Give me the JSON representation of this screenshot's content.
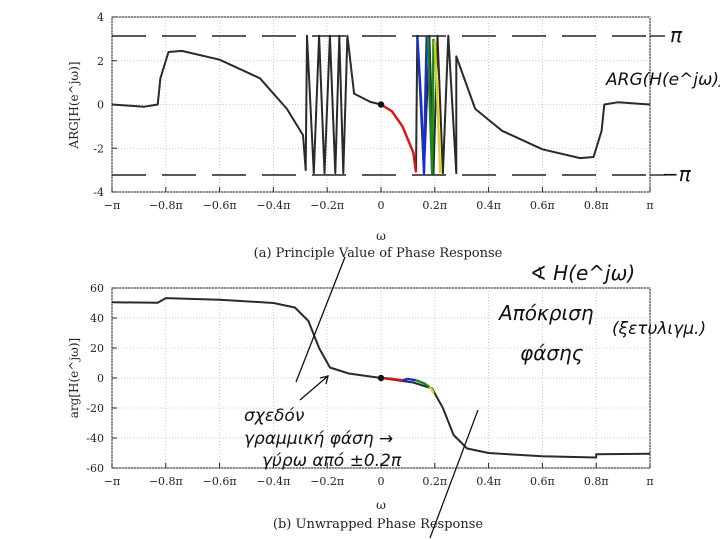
{
  "chart_data": [
    {
      "type": "line",
      "caption": "(a) Principle Value of Phase Response",
      "xlabel": "ω",
      "ylabel": "ARG[H(e^jω)]",
      "xlim_pi": [
        -1,
        1
      ],
      "ylim": [
        -4,
        4
      ],
      "xtick_labels": [
        "−π",
        "−0.8π",
        "−0.6π",
        "−0.4π",
        "−0.2π",
        "0",
        "0.2π",
        "0.4π",
        "0.6π",
        "0.8π",
        "π"
      ],
      "xtick_values_pi": [
        -1,
        -0.8,
        -0.6,
        -0.4,
        -0.2,
        0,
        0.2,
        0.4,
        0.6,
        0.8,
        1
      ],
      "ytick_values": [
        4,
        2,
        0,
        -2,
        -4
      ],
      "grid": true,
      "series": [
        {
          "color": "#2a2a2a",
          "points": [
            [
              -1,
              0
            ],
            [
              -0.88,
              -0.1
            ],
            [
              -0.83,
              0
            ],
            [
              -0.82,
              1.2
            ],
            [
              -0.79,
              2.4
            ],
            [
              -0.74,
              2.45
            ],
            [
              -0.6,
              2.05
            ],
            [
              -0.45,
              1.2
            ],
            [
              -0.35,
              -0.2
            ],
            [
              -0.29,
              -1.4
            ],
            [
              -0.28,
              -3.0
            ],
            [
              -0.275,
              3.14
            ],
            [
              -0.25,
              -3.14
            ],
            [
              -0.23,
              3.14
            ],
            [
              -0.21,
              -3.14
            ],
            [
              -0.19,
              3.14
            ],
            [
              -0.17,
              -3.14
            ],
            [
              -0.155,
              3.14
            ],
            [
              -0.14,
              -3.14
            ],
            [
              -0.125,
              3.14
            ],
            [
              -0.1,
              0.5
            ],
            [
              -0.04,
              0.12
            ],
            [
              0,
              0
            ]
          ]
        },
        {
          "color": "#2a2a2a",
          "points": [
            [
              0.13,
              -3.1
            ],
            [
              0.135,
              3.14
            ],
            [
              0.16,
              -3.14
            ],
            [
              0.18,
              3.14
            ],
            [
              0.195,
              -3.14
            ],
            [
              0.21,
              3.14
            ],
            [
              0.23,
              -3.14
            ],
            [
              0.25,
              3.14
            ],
            [
              0.28,
              -3.14
            ],
            [
              0.28,
              2.2
            ],
            [
              0.35,
              -0.2
            ],
            [
              0.45,
              -1.2
            ],
            [
              0.6,
              -2.05
            ],
            [
              0.74,
              -2.45
            ],
            [
              0.79,
              -2.4
            ],
            [
              0.82,
              -1.2
            ],
            [
              0.83,
              0
            ],
            [
              0.88,
              0.1
            ],
            [
              1,
              0
            ]
          ]
        },
        {
          "color": "#e01010",
          "points": [
            [
              0,
              0
            ],
            [
              0.04,
              -0.3
            ],
            [
              0.08,
              -1.0
            ],
            [
              0.12,
              -2.2
            ],
            [
              0.13,
              -3.1
            ]
          ]
        },
        {
          "color": "#1a2fd0",
          "points": [
            [
              0.135,
              3.14
            ],
            [
              0.15,
              0
            ],
            [
              0.16,
              -3.14
            ],
            [
              0.165,
              0.5
            ],
            [
              0.17,
              3.14
            ]
          ]
        },
        {
          "color": "#1a8a1a",
          "points": [
            [
              0.175,
              3.14
            ],
            [
              0.18,
              0.5
            ],
            [
              0.19,
              -3.14
            ],
            [
              0.195,
              3.0
            ]
          ]
        },
        {
          "color": "#e0d020",
          "points": [
            [
              0.2,
              2.9
            ],
            [
              0.21,
              0
            ],
            [
              0.22,
              -3.14
            ]
          ]
        }
      ]
    },
    {
      "type": "line",
      "caption": "(b) Unwrapped Phase Response",
      "xlabel": "ω",
      "ylabel": "arg[H(e^jω)]",
      "xlim_pi": [
        -1,
        1
      ],
      "ylim": [
        -60,
        60
      ],
      "xtick_labels": [
        "−π",
        "−0.8π",
        "−0.6π",
        "−0.4π",
        "−0.2π",
        "0",
        "0.2π",
        "0.4π",
        "0.6π",
        "0.8π",
        "π"
      ],
      "xtick_values_pi": [
        -1,
        -0.8,
        -0.6,
        -0.4,
        -0.2,
        0,
        0.2,
        0.4,
        0.6,
        0.8,
        1
      ],
      "ytick_values": [
        60,
        40,
        20,
        0,
        -20,
        -40,
        -60
      ],
      "grid": true,
      "series": [
        {
          "color": "#2a2a2a",
          "points": [
            [
              -1,
              50.5
            ],
            [
              -0.83,
              50.2
            ],
            [
              -0.8,
              53.3
            ],
            [
              -0.6,
              52.2
            ],
            [
              -0.4,
              50
            ],
            [
              -0.32,
              47
            ],
            [
              -0.27,
              38
            ],
            [
              -0.23,
              20
            ],
            [
              -0.19,
              7
            ],
            [
              -0.12,
              3
            ],
            [
              0,
              0
            ],
            [
              0.12,
              -3
            ],
            [
              0.19,
              -7
            ],
            [
              0.23,
              -20
            ],
            [
              0.27,
              -38
            ],
            [
              0.32,
              -47
            ],
            [
              0.4,
              -50
            ],
            [
              0.6,
              -52.2
            ],
            [
              0.8,
              -53
            ],
            [
              0.8,
              -50.8
            ],
            [
              1,
              -50.5
            ]
          ]
        },
        {
          "color": "#e01010",
          "points": [
            [
              0,
              0
            ],
            [
              0.04,
              -0.5
            ],
            [
              0.08,
              -1.5
            ]
          ]
        },
        {
          "color": "#1a2fd0",
          "points": [
            [
              0.08,
              -1.5
            ],
            [
              0.1,
              -0.6
            ],
            [
              0.13,
              -1.5
            ]
          ]
        },
        {
          "color": "#1a8a1a",
          "points": [
            [
              0.13,
              -1.5
            ],
            [
              0.16,
              -3.5
            ],
            [
              0.18,
              -6
            ]
          ]
        },
        {
          "color": "#e0d020",
          "points": [
            [
              0.18,
              -6
            ],
            [
              0.19,
              -8
            ],
            [
              0.195,
              -10
            ]
          ]
        }
      ]
    }
  ],
  "annotations": {
    "pi_label": "π",
    "neg_pi_label": "−π",
    "arg_label": "ARG(H(e^jω))",
    "phase_symbol": "∢ H(e^jω)",
    "response_word": "Απόκριση",
    "phase_word": "φάσης",
    "paren_word": "(ξετυλιγμ.)",
    "note_line1": "σχεδόν",
    "note_line2": "γραμμική φάση →",
    "note_line3": "γύρω από ±0.2π"
  }
}
